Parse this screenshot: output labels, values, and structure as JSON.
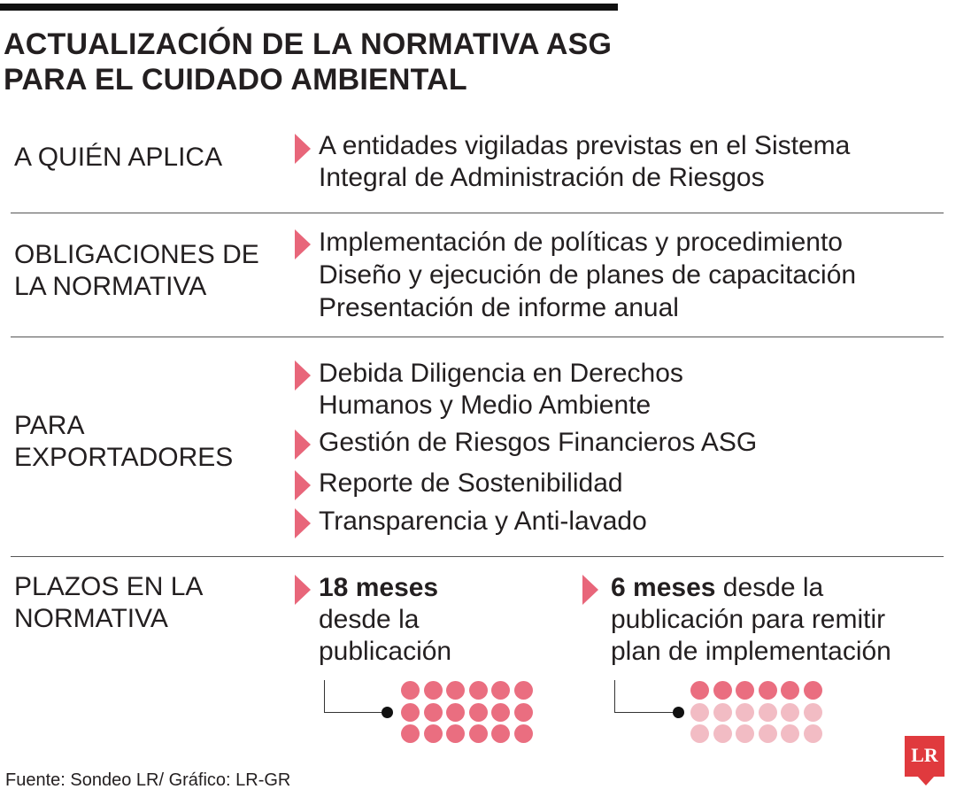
{
  "title": {
    "line1": "ACTUALIZACIÓN DE LA NORMATIVA ASG",
    "line2": "PARA EL CUIDADO AMBIENTAL"
  },
  "colors": {
    "accent": "#e8667a",
    "dot_filled": "#ea6e80",
    "dot_pale": "#f2bcc4",
    "logo": "#e03a3e"
  },
  "rows": [
    {
      "label": [
        "A QUIÉN APLICA"
      ],
      "items": [
        [
          "A entidades vigiladas previstas en el Sistema",
          "Integral de Administración de Riesgos"
        ]
      ]
    },
    {
      "label": [
        "OBLIGACIONES DE",
        "LA NORMATIVA"
      ],
      "items": [
        [
          "Implementación de políticas y procedimiento",
          "Diseño y ejecución de planes de capacitación",
          "Presentación de informe anual"
        ]
      ]
    },
    {
      "label": [
        "PARA",
        "EXPORTADORES"
      ],
      "items": [
        [
          "Debida Diligencia en Derechos",
          "Humanos y Medio Ambiente"
        ],
        [
          "Gestión de Riesgos Financieros ASG"
        ],
        [
          "Reporte de Sostenibilidad"
        ],
        [
          "Transparencia y Anti-lavado"
        ]
      ]
    },
    {
      "label": [
        "PLAZOS EN LA",
        "NORMATIVA"
      ],
      "deadlines": [
        {
          "bold": "18 meses",
          "rest_first_line": "",
          "lines": [
            "desde la",
            "publicación"
          ],
          "months": 18,
          "total": 18
        },
        {
          "bold": "6 meses",
          "rest_first_line": " desde la",
          "lines": [
            "publicación para remitir",
            "plan de implementación"
          ],
          "months": 6,
          "total": 18
        }
      ]
    }
  ],
  "source": "Fuente: Sondeo LR/ Gráfico: LR-GR",
  "logo": "LR"
}
